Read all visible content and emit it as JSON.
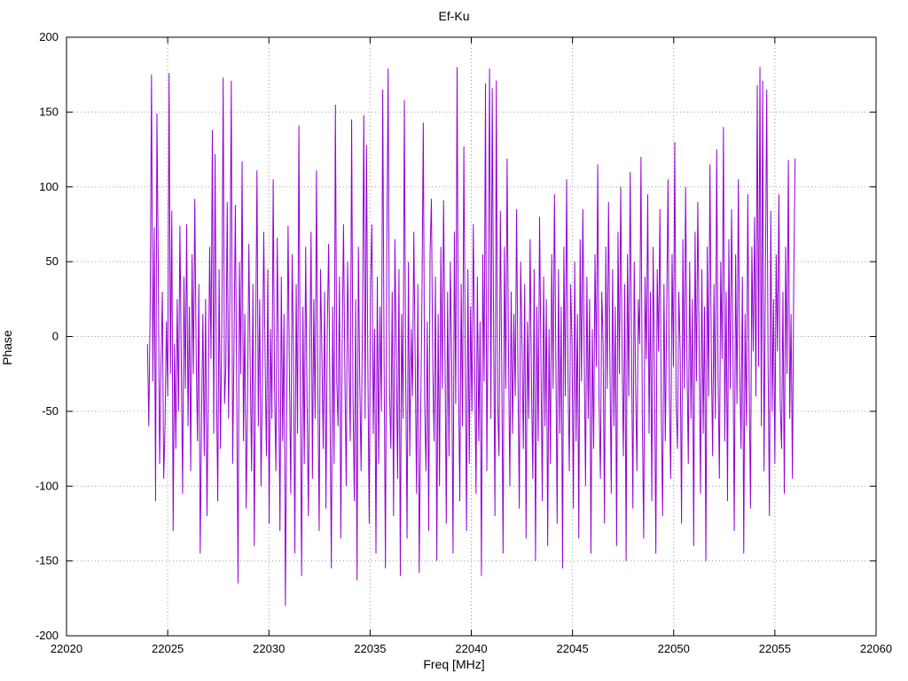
{
  "title": "Ef-Ku",
  "chart_data": {
    "type": "line",
    "title": "Ef-Ku",
    "xlabel": "Freq [MHz]",
    "ylabel": "Phase",
    "xlim": [
      22020,
      22060
    ],
    "ylim": [
      -200,
      200
    ],
    "x_ticks": [
      22020,
      22025,
      22030,
      22035,
      22040,
      22045,
      22050,
      22055,
      22060
    ],
    "y_ticks": [
      -200,
      -150,
      -100,
      -50,
      0,
      50,
      100,
      150,
      200
    ],
    "grid": "dotted",
    "legend": "none",
    "line_color": "#9400d3",
    "series": [
      {
        "name": "Ef-Ku",
        "x_start": 22024,
        "x_end": 22056,
        "values": [
          -5,
          -60,
          20,
          175,
          -30,
          73,
          -110,
          149,
          45,
          -85,
          -20,
          30,
          -95,
          -60,
          10,
          -40,
          176,
          -25,
          84,
          -130,
          -5,
          -75,
          25,
          -50,
          74,
          -15,
          -105,
          40,
          -35,
          75,
          -60,
          20,
          -90,
          55,
          -25,
          92,
          -10,
          -70,
          35,
          -145,
          -55,
          15,
          -80,
          25,
          -120,
          -40,
          60,
          -15,
          138,
          -65,
          122,
          -30,
          -110,
          45,
          -75,
          10,
          173,
          -45,
          -20,
          90,
          -55,
          30,
          171,
          -85,
          -10,
          88,
          -35,
          -165,
          50,
          -25,
          117,
          -70,
          15,
          -115,
          -45,
          62,
          -20,
          -90,
          35,
          -140,
          -5,
          111,
          -60,
          25,
          -100,
          -30,
          70,
          -15,
          -80,
          45,
          -125,
          5,
          -55,
          105,
          -35,
          -90,
          66,
          -20,
          -130,
          40,
          -70,
          15,
          -180,
          -50,
          74,
          -25,
          -105,
          55,
          -10,
          -145,
          35,
          -65,
          141,
          -30,
          -160,
          20,
          -85,
          60,
          -40,
          -120,
          -15,
          70,
          -95,
          25,
          -55,
          111,
          -35,
          -130,
          45,
          -10,
          -75,
          30,
          -115,
          5,
          62,
          -45,
          -155,
          20,
          -85,
          155,
          -30,
          -60,
          40,
          -135,
          -5,
          75,
          -25,
          -100,
          50,
          -15,
          -70,
          145,
          -40,
          -110,
          25,
          -163,
          60,
          -30,
          -90,
          10,
          148,
          -55,
          128,
          -20,
          -125,
          35,
          75,
          -65,
          5,
          -145,
          40,
          -85,
          20,
          -50,
          165,
          -15,
          -155,
          55,
          179,
          -35,
          -75,
          30,
          -120,
          65,
          -10,
          -95,
          45,
          -160,
          15,
          -55,
          158,
          -25,
          -135,
          50,
          -80,
          5,
          -40,
          70,
          -15,
          -105,
          35,
          -158,
          -60,
          25,
          143,
          -45,
          -90,
          10,
          -130,
          55,
          92,
          -20,
          -70,
          40,
          -150,
          15,
          -100,
          60,
          -35,
          91,
          -5,
          -125,
          30,
          -80,
          50,
          -15,
          -145,
          70,
          -45,
          180,
          -25,
          -110,
          35,
          -60,
          127,
          -10,
          -130,
          45,
          -85,
          20,
          -50,
          75,
          -15,
          -105,
          40,
          -70,
          10,
          -160,
          55,
          -30,
          169,
          -90,
          25,
          179,
          -55,
          166,
          5,
          -120,
          171,
          -45,
          -80,
          84,
          -20,
          -145,
          60,
          -35,
          119,
          -10,
          -100,
          30,
          -65,
          15,
          -40,
          85,
          -25,
          -115,
          50,
          -5,
          -75,
          35,
          -135,
          10,
          -55,
          65,
          -30,
          -95,
          45,
          -150,
          20,
          -70,
          80,
          -15,
          -110,
          40,
          -60,
          25,
          -140,
          5,
          -85,
          55,
          -35,
          95,
          -10,
          -125,
          45,
          -65,
          20,
          -155,
          60,
          -40,
          105,
          -25,
          -90,
          35,
          -5,
          -115,
          50,
          -70,
          15,
          -135,
          65,
          -30,
          85,
          -10,
          -100,
          40,
          -55,
          25,
          -145,
          5,
          -75,
          55,
          -20,
          115,
          -45,
          -95,
          30,
          -5,
          -125,
          60,
          -35,
          90,
          -15,
          -105,
          45,
          -60,
          20,
          -140,
          70,
          -25,
          100,
          -10,
          -80,
          35,
          -150,
          55,
          -40,
          110,
          -5,
          -115,
          50,
          -30,
          -90,
          25,
          -5,
          120,
          -55,
          -135,
          40,
          -15,
          95,
          -65,
          30,
          -110,
          60,
          -25,
          -145,
          45,
          -10,
          85,
          -50,
          -120,
          35,
          -70,
          15,
          105,
          -40,
          -95,
          55,
          -20,
          130,
          -45,
          -75,
          30,
          -10,
          -125,
          65,
          -35,
          100,
          -15,
          -85,
          50,
          -55,
          25,
          -140,
          70,
          -30,
          90,
          -5,
          -105,
          45,
          -65,
          20,
          -150,
          60,
          -40,
          115,
          -10,
          -80,
          35,
          -55,
          125,
          -25,
          -95,
          50,
          -15,
          140,
          -70,
          30,
          -110,
          65,
          -35,
          85,
          -5,
          -130,
          55,
          -45,
          105,
          -20,
          -75,
          40,
          -145,
          15,
          -60,
          95,
          -30,
          -115,
          60,
          -10,
          80,
          -40,
          168,
          -20,
          180,
          -60,
          171,
          -90,
          35,
          165,
          -15,
          -120,
          84,
          -50,
          25,
          -85,
          55,
          -10,
          95,
          -45,
          -75,
          30,
          -105,
          60,
          -25,
          118,
          -55,
          15,
          -95,
          40,
          119
        ]
      }
    ]
  }
}
